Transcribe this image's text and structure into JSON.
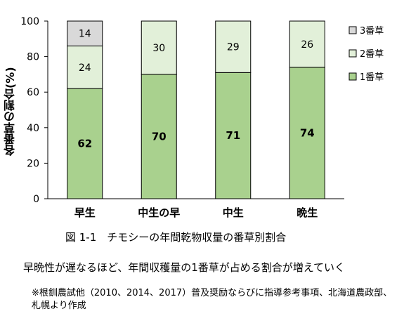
{
  "chart_data": {
    "type": "bar",
    "stacked": true,
    "categories": [
      "早生",
      "中生の早",
      "中生",
      "晩生"
    ],
    "series": [
      {
        "name": "1番草",
        "values": [
          62,
          70,
          71,
          74
        ],
        "color": "#a9d18e"
      },
      {
        "name": "2番草",
        "values": [
          24,
          30,
          29,
          26
        ],
        "color": "#e2f0d9"
      },
      {
        "name": "3番草",
        "values": [
          14,
          0,
          0,
          0
        ],
        "color": "#d9d9d9"
      }
    ],
    "ylabel": "各番草の割合(%)",
    "ylim": [
      0,
      100
    ],
    "yticks": [
      0,
      20,
      40,
      60,
      80,
      100
    ],
    "grid": false,
    "legend_position": "right"
  },
  "figure": {
    "caption": "図 1-1　チモシーの年間乾物収量の番草別割合",
    "note": "早晩性が遅なるほど、年間収穫量の1番草が占める割合が増えていく",
    "source": "※根釧農試他（2010、2014、2017）普及奨励ならびに指導参考事項、北海道農政部、札幌より作成"
  }
}
